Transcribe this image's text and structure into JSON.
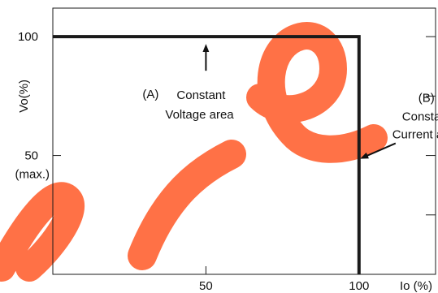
{
  "chart_data": {
    "type": "line",
    "title": "",
    "xlabel": "Io (%)",
    "ylabel": "Vo(%)",
    "xlim": [
      0,
      125
    ],
    "ylim": [
      0,
      112
    ],
    "x_ticks": [
      {
        "value": 50,
        "label": "50"
      },
      {
        "value": 100,
        "label": "100"
      }
    ],
    "y_ticks": [
      {
        "value": 100,
        "label": "100"
      },
      {
        "value": 50,
        "label": "50"
      }
    ],
    "y_tick_note": "(max.)",
    "right_ticks": [
      100,
      75,
      50,
      25
    ],
    "grid": false,
    "legend": "none",
    "series": [
      {
        "x": [
          0,
          100,
          100
        ],
        "y": [
          100,
          100,
          0
        ],
        "color": "#1a1a1a"
      }
    ],
    "annotations": {
      "a": {
        "marker": "(A)",
        "lines": [
          "Constant",
          "Voltage area"
        ],
        "arrow_tip": [
          50,
          100
        ]
      },
      "b": {
        "marker": "(B)",
        "lines": [
          "Constant",
          "Current area"
        ],
        "arrow_tip": [
          100,
          50
        ]
      }
    },
    "watermark": {
      "text": "Pre",
      "color": "#ff6a3d"
    }
  }
}
